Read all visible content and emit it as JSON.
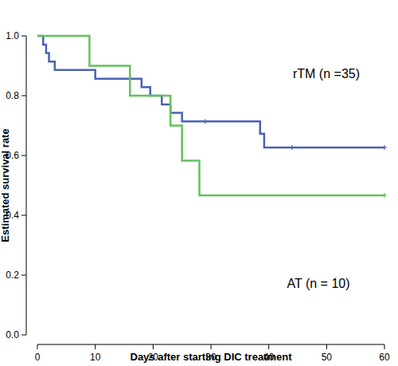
{
  "chart_data": {
    "type": "step",
    "x_label": "Days after starting DIC treatment",
    "y_label": "Estimated survival rate",
    "xlim": [
      0,
      60
    ],
    "ylim": [
      0,
      1
    ],
    "xticks": [
      0,
      10,
      20,
      30,
      40,
      50,
      60
    ],
    "yticks": [
      {
        "value": 0,
        "label": "0.0"
      },
      0.2,
      0.4,
      0.6,
      0.8,
      {
        "value": 1,
        "label": "1.0"
      }
    ],
    "grid": false,
    "series": [
      {
        "name": "rTM (n =35)",
        "color": "#4b62b4",
        "x": [
          0,
          1,
          1.5,
          2,
          3,
          10,
          18,
          19.5,
          21.5,
          23,
          25,
          38.5,
          39.2,
          60
        ],
        "values": [
          1,
          0.971,
          0.943,
          0.914,
          0.886,
          0.857,
          0.829,
          0.8,
          0.771,
          0.743,
          0.714,
          0.673,
          0.627,
          0.627
        ],
        "censored": [
          29,
          44,
          60
        ]
      },
      {
        "name": "AT (n = 10)",
        "color": "#62c25a",
        "x": [
          0,
          9,
          16,
          23,
          25,
          28,
          60
        ],
        "values": [
          1,
          0.9,
          0.8,
          0.7,
          0.583,
          0.467,
          0.467
        ],
        "censored": [
          60
        ]
      }
    ]
  }
}
